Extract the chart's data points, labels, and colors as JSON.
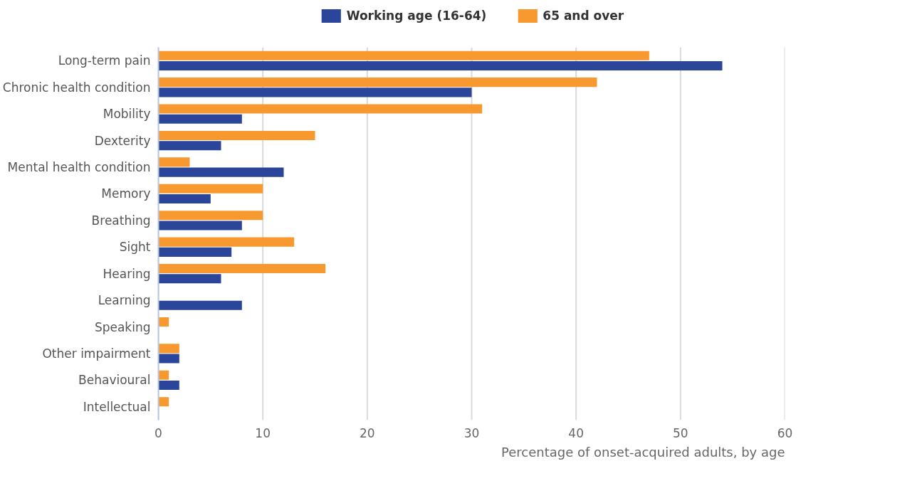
{
  "chart_data": {
    "type": "bar",
    "orientation": "horizontal",
    "categories": [
      "Long-term pain",
      "Chronic health condition",
      "Mobility",
      "Dexterity",
      "Mental health condition",
      "Memory",
      "Breathing",
      "Sight",
      "Hearing",
      "Learning",
      "Speaking",
      "Other impairment",
      "Behavioural",
      "Intellectual"
    ],
    "series": [
      {
        "name": "Working age (16-64)",
        "color": "#2a4599",
        "values": [
          54,
          30,
          8,
          6,
          12,
          5,
          8,
          7,
          6,
          8,
          0,
          2,
          2,
          0
        ]
      },
      {
        "name": "65 and over",
        "color": "#f7992f",
        "values": [
          47,
          42,
          31,
          15,
          3,
          10,
          10,
          13,
          16,
          0,
          1,
          2,
          1,
          1
        ]
      }
    ],
    "xlim": [
      0,
      60
    ],
    "xticks": [
      0,
      10,
      20,
      30,
      40,
      50,
      60
    ],
    "xlabel": "Percentage of onset-acquired adults, by age",
    "grid": "x",
    "legend": "top"
  }
}
